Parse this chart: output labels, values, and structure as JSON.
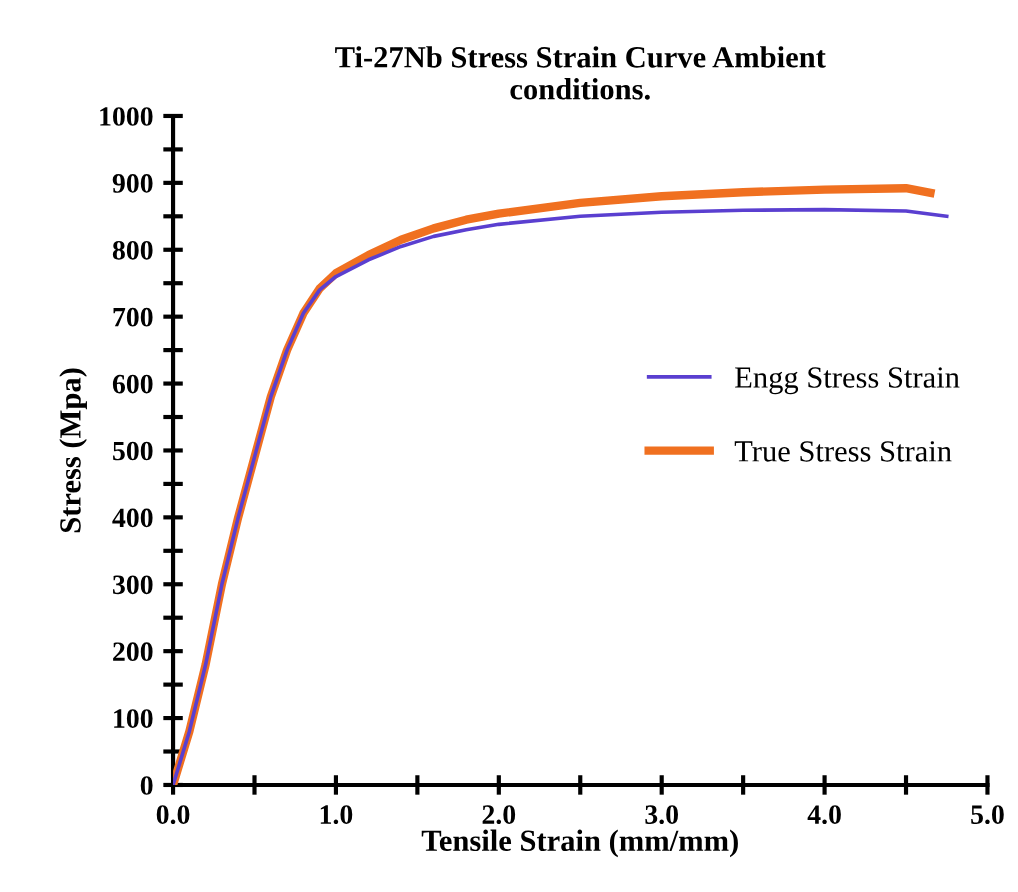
{
  "chart_data": {
    "type": "line",
    "title": "Ti-27Nb Stress Strain Curve Ambient\nconditions.",
    "xlabel": "Tensile Strain (mm/mm)",
    "ylabel": "Stress (Mpa)",
    "xlim": [
      0,
      5
    ],
    "ylim": [
      0,
      1000
    ],
    "xticks": [
      {
        "value": 0,
        "label": "0.0"
      },
      {
        "value": 0.5,
        "label": null
      },
      {
        "value": 1,
        "label": "1.0"
      },
      {
        "value": 1.5,
        "label": null
      },
      {
        "value": 2,
        "label": "2.0"
      },
      {
        "value": 2.5,
        "label": null
      },
      {
        "value": 3,
        "label": "3.0"
      },
      {
        "value": 3.5,
        "label": null
      },
      {
        "value": 4,
        "label": "4.0"
      },
      {
        "value": 4.5,
        "label": null
      },
      {
        "value": 5,
        "label": "5.0"
      }
    ],
    "yticks": [
      0,
      {
        "value": 50,
        "label": null
      },
      100,
      {
        "value": 150,
        "label": null
      },
      200,
      {
        "value": 250,
        "label": null
      },
      300,
      {
        "value": 350,
        "label": null
      },
      400,
      {
        "value": 450,
        "label": null
      },
      500,
      {
        "value": 550,
        "label": null
      },
      600,
      {
        "value": 650,
        "label": null
      },
      700,
      {
        "value": 750,
        "label": null
      },
      800,
      {
        "value": 850,
        "label": null
      },
      900,
      {
        "value": 950,
        "label": null
      },
      1000
    ],
    "grid": false,
    "legend": "right",
    "marker": "none",
    "line_style": "solid",
    "series": [
      {
        "name": "Engg Stress Strain",
        "color": "#5a3fd0",
        "x": [
          0,
          0.1,
          0.2,
          0.3,
          0.4,
          0.5,
          0.6,
          0.7,
          0.8,
          0.9,
          1.0,
          1.2,
          1.4,
          1.6,
          1.8,
          2.0,
          2.5,
          3.0,
          3.5,
          4.0,
          4.5,
          4.75
        ],
        "values": [
          0,
          80,
          180,
          300,
          400,
          490,
          580,
          650,
          705,
          740,
          760,
          785,
          805,
          820,
          830,
          838,
          850,
          856,
          859,
          860,
          858,
          850
        ]
      },
      {
        "name": "True Stress Strain",
        "color": "#f07020",
        "x": [
          0,
          0.1,
          0.2,
          0.3,
          0.4,
          0.5,
          0.6,
          0.7,
          0.8,
          0.9,
          1.0,
          1.2,
          1.4,
          1.6,
          1.8,
          2.0,
          2.5,
          3.0,
          3.5,
          4.0,
          4.5,
          4.65
        ],
        "values": [
          0,
          80,
          180,
          300,
          400,
          490,
          580,
          650,
          705,
          742,
          765,
          792,
          815,
          832,
          845,
          854,
          870,
          880,
          886,
          890,
          892,
          885
        ]
      }
    ]
  }
}
